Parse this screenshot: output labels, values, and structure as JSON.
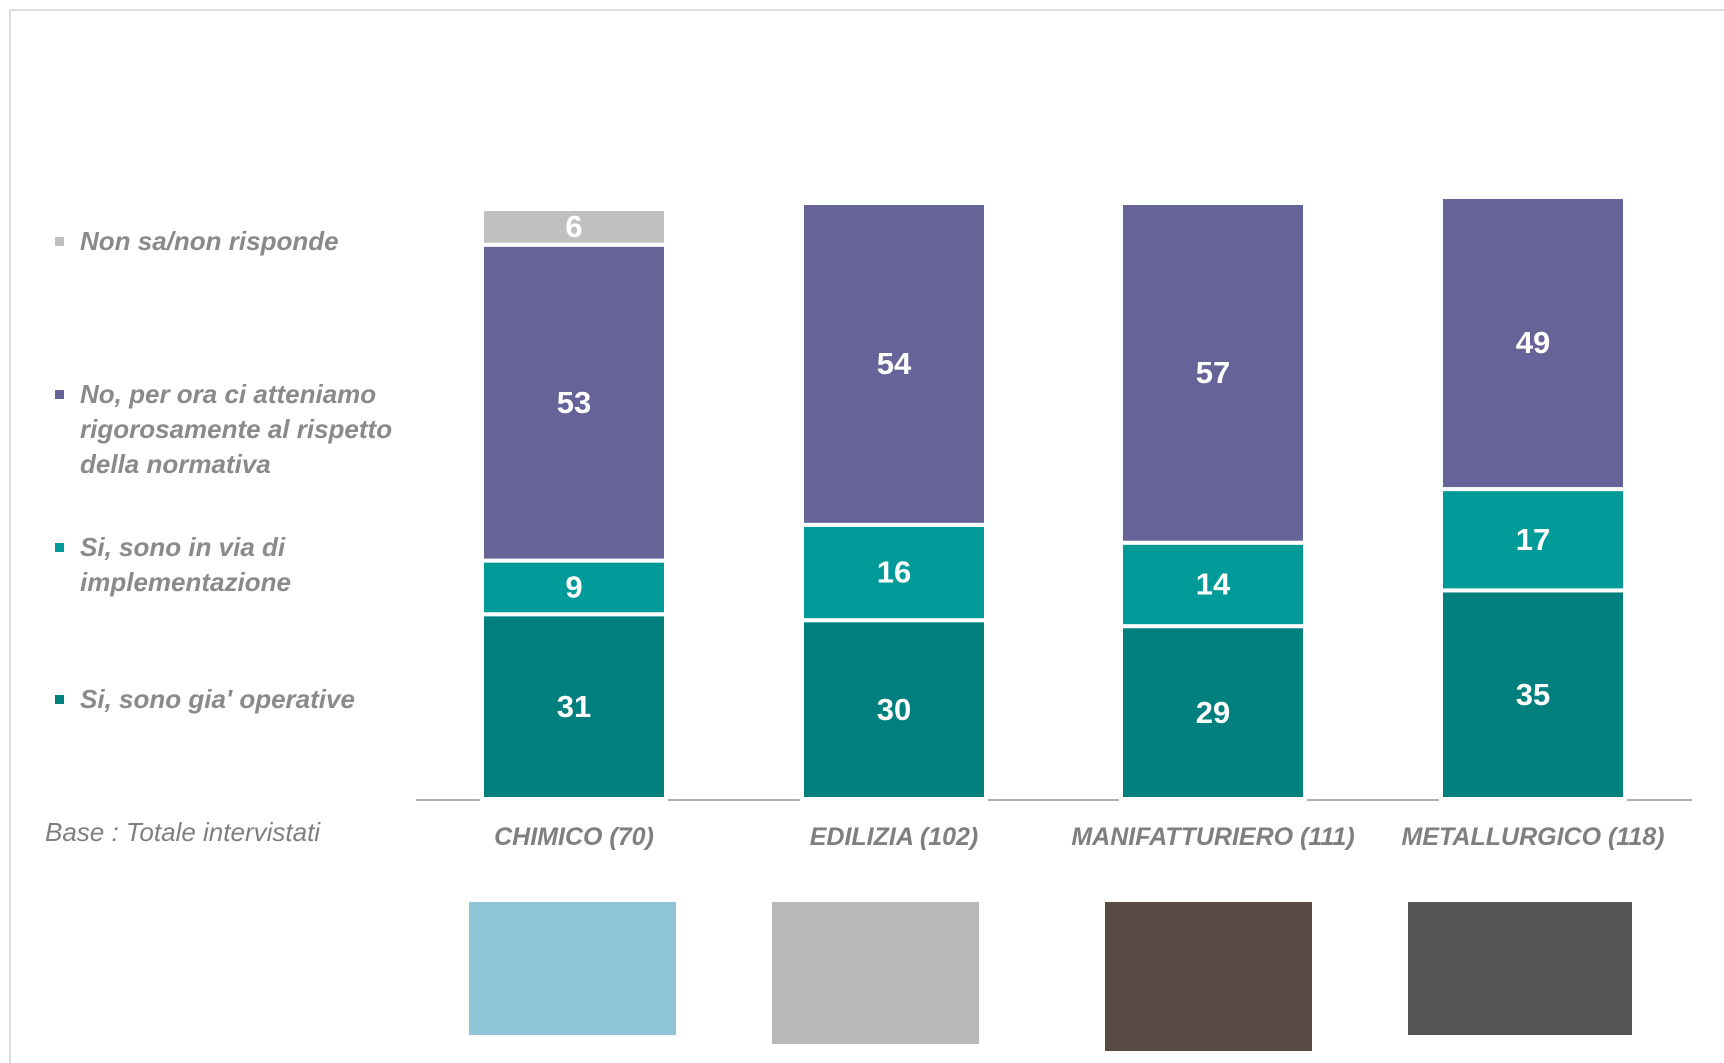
{
  "chart_data": {
    "type": "stacked-bar",
    "categories": [
      "CHIMICO (70)",
      "EDILIZIA (102)",
      "MANIFATTURIERO (111)",
      "METALLURGICO (118)"
    ],
    "series": [
      {
        "name": "Si, sono gia' operative",
        "color": "#007f7f",
        "values": [
          31,
          30,
          29,
          35
        ]
      },
      {
        "name": "Si, sono in via di implementazione",
        "color": "#009b99",
        "values": [
          9,
          16,
          14,
          17
        ]
      },
      {
        "name": "No, per ora ci atteniamo rigorosamente al rispetto della normativa",
        "color": "#656398",
        "values": [
          53,
          54,
          57,
          49
        ]
      },
      {
        "name": "Non sa/non risponde",
        "color": "#c0c0c0",
        "values": [
          6,
          null,
          null,
          null
        ]
      }
    ],
    "ylim": [
      0,
      100
    ],
    "annotation": "Base : Totale intervistati"
  }
}
